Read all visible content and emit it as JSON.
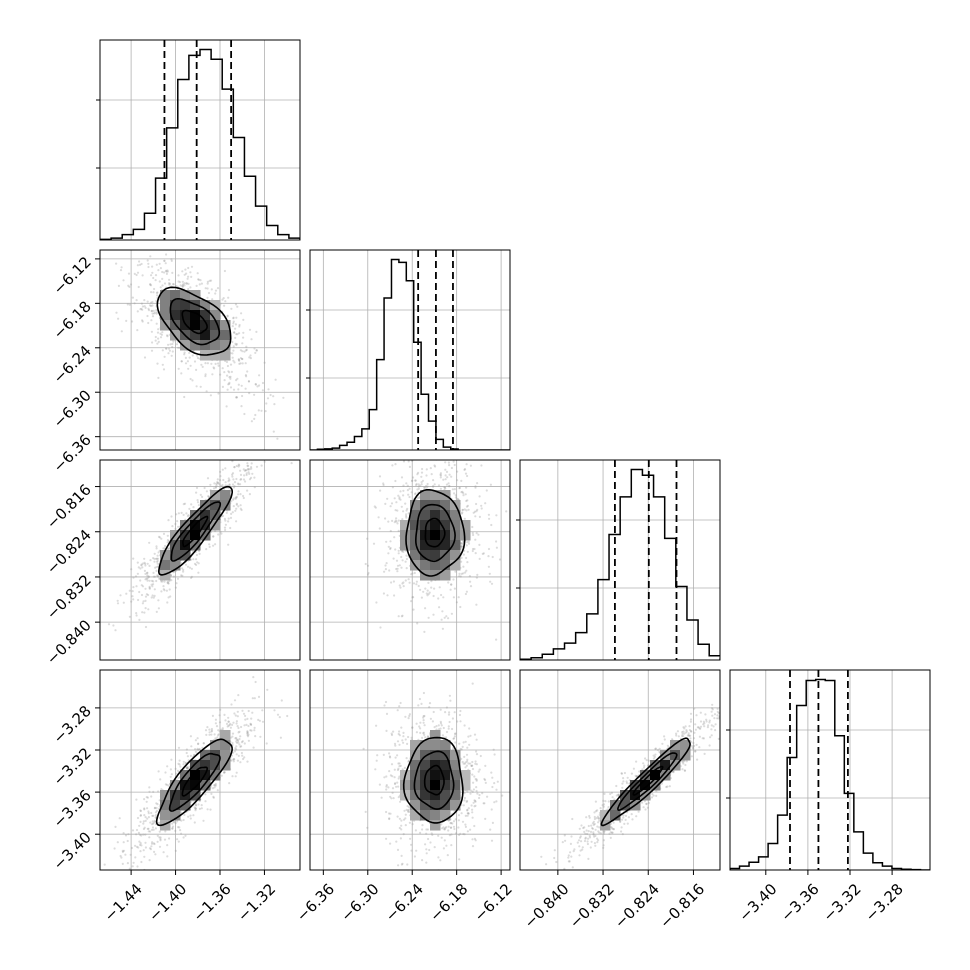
{
  "chart_data": {
    "type": "corner",
    "title": "",
    "grid": true,
    "parameters": [
      {
        "xlabel": "",
        "range": [
          -1.468,
          -1.288
        ],
        "ticks": [
          "−1.44",
          "−1.40",
          "−1.36",
          "−1.32"
        ],
        "tick_values": [
          -1.44,
          -1.4,
          -1.36,
          -1.32
        ],
        "quantiles": [
          -1.41,
          -1.381,
          -1.35
        ],
        "hist": {
          "start": -1.468,
          "step": 0.01,
          "counts": [
            3,
            10,
            28,
            55,
            138,
            320,
            580,
            830,
            955,
            985,
            935,
            780,
            530,
            330,
            175,
            75,
            28,
            10
          ]
        }
      },
      {
        "xlabel": "",
        "range": [
          -6.378,
          -6.108
        ],
        "ticks": [
          "−6.36",
          "−6.30",
          "−6.24",
          "−6.18",
          "−6.12"
        ],
        "tick_values": [
          -6.36,
          -6.3,
          -6.24,
          -6.18,
          -6.12
        ],
        "quantiles": [
          -6.232,
          -6.208,
          -6.185
        ],
        "hist": {
          "start": -6.378,
          "step": 0.01,
          "counts": [
            0,
            4,
            6,
            10,
            24,
            40,
            70,
            110,
            210,
            470,
            790,
            990,
            975,
            880,
            560,
            290,
            150,
            55,
            15,
            5,
            0,
            0,
            0,
            0,
            0,
            0,
            0
          ]
        }
      },
      {
        "xlabel": "",
        "range": [
          -0.8467,
          -0.8113
        ],
        "ticks": [
          "−0.840",
          "−0.832",
          "−0.824",
          "−0.816"
        ],
        "tick_values": [
          -0.84,
          -0.832,
          -0.824,
          -0.816
        ],
        "quantiles": [
          -0.8299,
          -0.8239,
          -0.819
        ],
        "hist": {
          "start": -0.8467,
          "step": 0.00197,
          "counts": [
            4,
            12,
            30,
            58,
            88,
            142,
            240,
            418,
            652,
            848,
            990,
            960,
            848,
            632,
            382,
            208,
            82,
            22
          ]
        }
      },
      {
        "xlabel": "",
        "range": [
          -3.434,
          -3.244
        ],
        "ticks": [
          "−3.40",
          "−3.36",
          "−3.32",
          "−3.28"
        ],
        "tick_values": [
          -3.4,
          -3.36,
          -3.32,
          -3.28
        ],
        "quantiles": [
          -3.377,
          -3.35,
          -3.322
        ],
        "hist": {
          "start": -3.434,
          "step": 0.00905,
          "counts": [
            8,
            20,
            40,
            68,
            138,
            285,
            585,
            855,
            985,
            990,
            985,
            698,
            398,
            198,
            88,
            38,
            20,
            8,
            4,
            2,
            0
          ]
        }
      }
    ],
    "pairs": [
      {
        "x": 0,
        "y": 1,
        "center": [
          -1.383,
          -6.205
        ],
        "sigma": [
          0.022,
          0.03
        ],
        "rho": -0.5,
        "tilt": -0.012
      },
      {
        "x": 0,
        "y": 2,
        "center": [
          -1.383,
          -0.824
        ],
        "sigma": [
          0.022,
          0.0052
        ],
        "rho": 0.9,
        "tilt": 0
      },
      {
        "x": 1,
        "y": 2,
        "center": [
          -6.21,
          -0.8242
        ],
        "sigma": [
          0.026,
          0.005
        ],
        "rho": 0.0,
        "tilt": 0
      },
      {
        "x": 0,
        "y": 3,
        "center": [
          -1.383,
          -3.349
        ],
        "sigma": [
          0.022,
          0.027
        ],
        "rho": 0.84,
        "tilt": 0
      },
      {
        "x": 1,
        "y": 3,
        "center": [
          -6.21,
          -3.349
        ],
        "sigma": [
          0.026,
          0.027
        ],
        "rho": 0.0,
        "tilt": 0
      },
      {
        "x": 2,
        "y": 3,
        "center": [
          -0.824,
          -3.349
        ],
        "sigma": [
          0.0052,
          0.027
        ],
        "rho": 0.95,
        "tilt": 0
      }
    ],
    "contour_levels": [
      0.5,
      1.0,
      1.5
    ]
  }
}
